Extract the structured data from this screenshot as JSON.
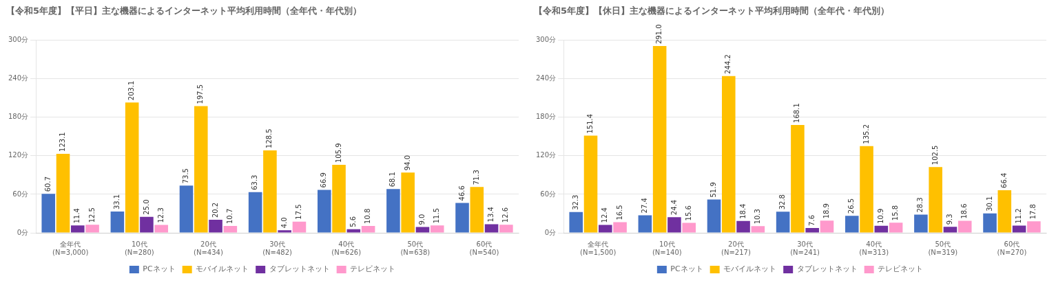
{
  "chart_data": [
    {
      "type": "bar",
      "title": "【令和5年度】【平日】主な機器によるインターネット平均利用時間（全年代・年代別）",
      "categories": [
        "全年代\n(N=3,000)",
        "10代\n(N=280)",
        "20代\n(N=434)",
        "30代\n(N=482)",
        "40代\n(N=626)",
        "50代\n(N=638)",
        "60代\n(N=540)"
      ],
      "series": [
        {
          "name": "PCネット",
          "color": "#4472C4",
          "values": [
            60.7,
            33.1,
            73.5,
            63.3,
            66.9,
            68.1,
            46.6
          ],
          "value_labels": [
            "60.7",
            "33.1",
            "73.5",
            "63.3",
            "66.9",
            "68.1",
            "46.6"
          ]
        },
        {
          "name": "モバイルネット",
          "color": "#FFC000",
          "values": [
            123.1,
            203.1,
            197.5,
            128.5,
            105.9,
            94.0,
            71.3
          ],
          "value_labels": [
            "123.1",
            "203.1",
            "197.5",
            "128.5",
            "105.9",
            "94.0",
            "71.3"
          ]
        },
        {
          "name": "タブレットネット",
          "color": "#7030A0",
          "values": [
            11.4,
            25.0,
            20.2,
            4.0,
            5.6,
            9.0,
            13.4
          ],
          "value_labels": [
            "11.4",
            "25.0",
            "20.2",
            "4.0",
            "5.6",
            "9.0",
            "13.4"
          ]
        },
        {
          "name": "テレビネット",
          "color": "#FF99CC",
          "values": [
            12.5,
            12.3,
            10.7,
            17.5,
            10.8,
            11.5,
            12.6
          ],
          "value_labels": [
            "12.5",
            "12.3",
            "10.7",
            "17.5",
            "10.8",
            "11.5",
            "12.6"
          ]
        }
      ],
      "ylim": [
        0,
        300
      ],
      "yticks": [
        {
          "value": 0,
          "label": "0分"
        },
        {
          "value": 60,
          "label": "60分"
        },
        {
          "value": 120,
          "label": "120分"
        },
        {
          "value": 180,
          "label": "180分"
        },
        {
          "value": 240,
          "label": "240分"
        },
        {
          "value": 300,
          "label": "300分"
        }
      ],
      "grid": true,
      "legend": "bottom",
      "data_labels": true
    },
    {
      "type": "bar",
      "title": "【令和5年度】【休日】主な機器によるインターネット平均利用時間（全年代・年代別）",
      "categories": [
        "全年代\n(N=1,500)",
        "10代\n(N=140)",
        "20代\n(N=217)",
        "30代\n(N=241)",
        "40代\n(N=313)",
        "50代\n(N=319)",
        "60代\n(N=270)"
      ],
      "series": [
        {
          "name": "PCネット",
          "color": "#4472C4",
          "values": [
            32.3,
            27.4,
            51.9,
            32.8,
            26.5,
            28.3,
            30.1
          ],
          "value_labels": [
            "32.3",
            "27.4",
            "51.9",
            "32.8",
            "26.5",
            "28.3",
            "30.1"
          ]
        },
        {
          "name": "モバイルネット",
          "color": "#FFC000",
          "values": [
            151.4,
            291.0,
            244.2,
            168.1,
            135.2,
            102.5,
            66.4
          ],
          "value_labels": [
            "151.4",
            "291.0",
            "244.2",
            "168.1",
            "135.2",
            "102.5",
            "66.4"
          ]
        },
        {
          "name": "タブレットネット",
          "color": "#7030A0",
          "values": [
            12.4,
            24.4,
            18.4,
            7.6,
            10.9,
            9.3,
            11.2
          ],
          "value_labels": [
            "12.4",
            "24.4",
            "18.4",
            "7.6",
            "10.9",
            "9.3",
            "11.2"
          ]
        },
        {
          "name": "テレビネット",
          "color": "#FF99CC",
          "values": [
            16.5,
            15.6,
            10.3,
            18.9,
            15.8,
            18.6,
            17.8
          ],
          "value_labels": [
            "16.5",
            "15.6",
            "10.3",
            "18.9",
            "15.8",
            "18.6",
            "17.8"
          ]
        }
      ],
      "ylim": [
        0,
        300
      ],
      "yticks": [
        {
          "value": 0,
          "label": "0分"
        },
        {
          "value": 60,
          "label": "60分"
        },
        {
          "value": 120,
          "label": "120分"
        },
        {
          "value": 180,
          "label": "180分"
        },
        {
          "value": 240,
          "label": "240分"
        },
        {
          "value": 300,
          "label": "300分"
        }
      ],
      "grid": true,
      "legend": "bottom",
      "data_labels": true
    }
  ]
}
